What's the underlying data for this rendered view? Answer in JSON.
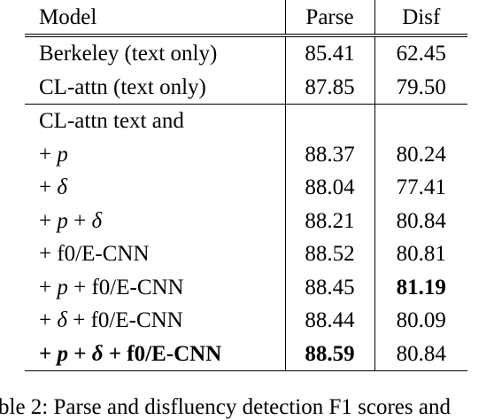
{
  "table": {
    "header": [
      "Model",
      "Parse",
      "Disf"
    ],
    "groups": [
      [
        {
          "model": "Berkeley (text only)",
          "parse": "85.41",
          "disf": "62.45"
        },
        {
          "model": "CL-attn (text only)",
          "parse": "87.85",
          "disf": "79.50"
        }
      ],
      [
        {
          "model": "CL-attn text and",
          "parse": "",
          "disf": ""
        },
        {
          "model": "+ p",
          "parse": "88.37",
          "disf": "80.24"
        },
        {
          "model": "+ δ",
          "parse": "88.04",
          "disf": "77.41"
        },
        {
          "model": "+ p + δ",
          "parse": "88.21",
          "disf": "80.84"
        },
        {
          "model": "+ f0/E-CNN",
          "parse": "88.52",
          "disf": "80.81"
        },
        {
          "model": "+ p + f0/E-CNN",
          "parse": "88.45",
          "disf": "81.19",
          "bold": [
            "disf"
          ]
        },
        {
          "model": "+ δ + f0/E-CNN",
          "parse": "88.44",
          "disf": "80.09"
        },
        {
          "model": "+ p + δ + f0/E-CNN",
          "parse": "88.59",
          "disf": "80.84",
          "bold": [
            "model",
            "parse"
          ]
        }
      ]
    ]
  },
  "caption": "ble 2: Parse and disfluency detection F1 scores and"
}
